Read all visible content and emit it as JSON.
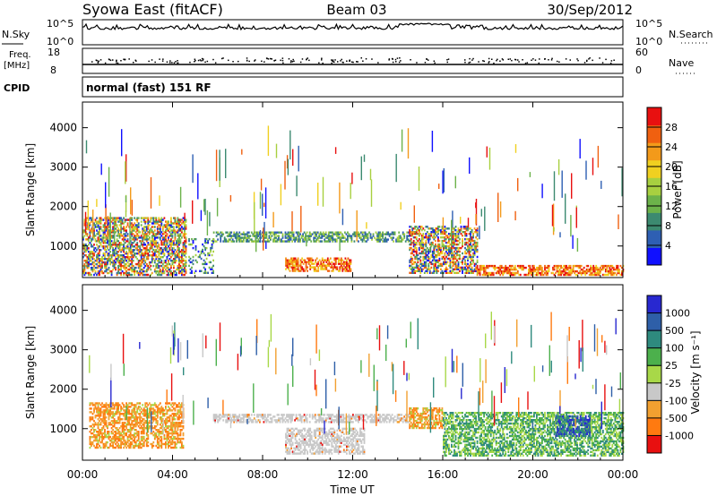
{
  "header": {
    "station": "Syowa East (fitACF)",
    "beam": "Beam 03",
    "date": "30/Sep/2012"
  },
  "noise_panel": {
    "left_label": "N.Sky",
    "right_label": "N.Search",
    "ticks_top": "10^5",
    "ticks_bottom": "10^0",
    "right_ticks_top": "10^5",
    "right_ticks_bottom": "10^0"
  },
  "freq_panel": {
    "left_label_top": "Freq.",
    "left_label_unit": "[MHz]",
    "left_tick_top": "18",
    "left_tick_bottom": "8",
    "right_label": "Nave",
    "right_tick_top": "60",
    "right_tick_bottom": "0"
  },
  "cpid": {
    "label": "CPID",
    "mode": "normal (fast) 151 RF"
  },
  "colors": {
    "power": [
      "#1010ff",
      "#2e5fb3",
      "#3c8a70",
      "#6cb24a",
      "#a8d040",
      "#f0d020",
      "#f39a1a",
      "#f06010",
      "#e81010"
    ],
    "velocity": [
      "#e81010",
      "#ff7a10",
      "#f2a030",
      "#c8c8c8",
      "#a8d848",
      "#4cb04c",
      "#2e8a7e",
      "#2e5fa8",
      "#2828d0"
    ]
  },
  "chart_data": [
    {
      "type": "heatmap",
      "name_hint": "power",
      "x_ticks": [
        "00:00",
        "04:00",
        "08:00",
        "12:00",
        "16:00",
        "20:00",
        "00:00"
      ],
      "y_ticks": [
        "1000",
        "2000",
        "3000",
        "4000"
      ],
      "ylabel": "Slant Range [km]",
      "ylim": [
        200,
        4650
      ],
      "xlim_hours": [
        0,
        24
      ],
      "colorbar_label": "Power [dB]",
      "colorbar_ticks": [
        "4",
        "8",
        "12",
        "16",
        "20",
        "24",
        "28"
      ],
      "colorbar_range": [
        0,
        32
      ],
      "regions": [
        {
          "t0": 0.0,
          "t1": 4.6,
          "r0": 250,
          "r1": 1700,
          "level": "mixed-high"
        },
        {
          "t0": 4.7,
          "t1": 5.8,
          "r0": 300,
          "r1": 1200,
          "level": "sparse"
        },
        {
          "t0": 5.8,
          "t1": 14.5,
          "r0": 1100,
          "r1": 1350,
          "level": "medium"
        },
        {
          "t0": 9.0,
          "t1": 12.0,
          "r0": 350,
          "r1": 700,
          "level": "high"
        },
        {
          "t0": 14.5,
          "t1": 17.5,
          "r0": 300,
          "r1": 1500,
          "level": "mixed-high"
        },
        {
          "t0": 17.5,
          "t1": 24.0,
          "r0": 250,
          "r1": 500,
          "level": "high"
        }
      ]
    },
    {
      "type": "heatmap",
      "name_hint": "velocity",
      "x_ticks": [
        "00:00",
        "04:00",
        "08:00",
        "12:00",
        "16:00",
        "20:00",
        "00:00"
      ],
      "y_ticks": [
        "1000",
        "2000",
        "3000",
        "4000"
      ],
      "ylabel": "Slant Range [km]",
      "ylim": [
        200,
        4650
      ],
      "xlim_hours": [
        0,
        24
      ],
      "xlabel": "Time UT",
      "colorbar_label": "Velocity [m s⁻¹]",
      "colorbar_ticks": [
        "1000",
        "500",
        "100",
        "25",
        "-25",
        "-100",
        "-500",
        "-1000"
      ],
      "regions": [
        {
          "t0": 0.3,
          "t1": 4.5,
          "r0": 500,
          "r1": 1650,
          "level": "-500 to -100"
        },
        {
          "t0": 5.8,
          "t1": 14.5,
          "r0": 1150,
          "r1": 1350,
          "level": "-25 to 25"
        },
        {
          "t0": 9.0,
          "t1": 12.5,
          "r0": 350,
          "r1": 1000,
          "level": "-25 to 25"
        },
        {
          "t0": 14.5,
          "t1": 16.0,
          "r0": 1000,
          "r1": 1500,
          "level": "-500 to -100"
        },
        {
          "t0": 16.0,
          "t1": 24.0,
          "r0": 300,
          "r1": 1400,
          "level": "25 to 500"
        },
        {
          "t0": 21.0,
          "t1": 22.5,
          "r0": 800,
          "r1": 1300,
          "level": "500 to 1000"
        }
      ]
    }
  ],
  "labels": {
    "power_axis": "Power [dB]",
    "velocity_axis": "Velocity [m s⁻¹]",
    "xlabel": "Time UT",
    "ylabel": "Slant Range [km]"
  }
}
